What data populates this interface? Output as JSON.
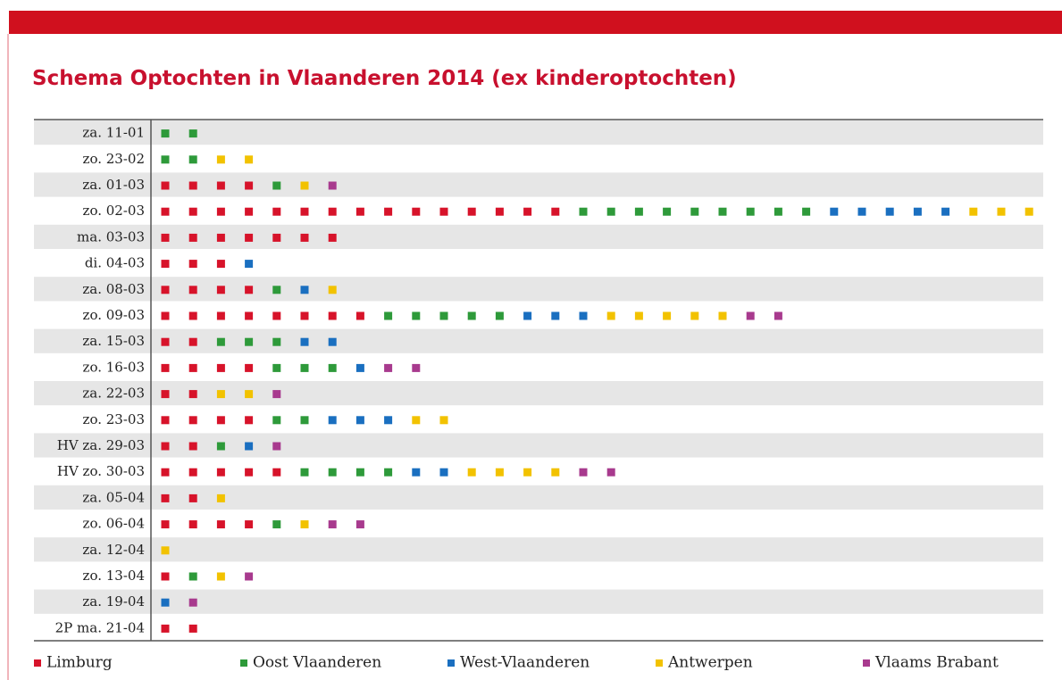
{
  "chart_data": {
    "type": "dot",
    "title": "Schema Optochten in Vlaanderen 2014 (ex kinderoptochten)",
    "categories": [
      "za. 11-01",
      "zo. 23-02",
      "za. 01-03",
      "zo. 02-03",
      "ma. 03-03",
      "di. 04-03",
      "za. 08-03",
      "zo. 09-03",
      "za. 15-03",
      "zo. 16-03",
      "za. 22-03",
      "zo. 23-03",
      "HV za. 29-03",
      "HV zo. 30-03",
      "za. 05-04",
      "zo. 06-04",
      "za. 12-04",
      "zo. 13-04",
      "za. 19-04",
      "2P ma. 21-04"
    ],
    "series": [
      {
        "name": "Limburg",
        "color": "#d7132a",
        "values": [
          0,
          0,
          4,
          15,
          7,
          3,
          4,
          8,
          2,
          4,
          2,
          4,
          2,
          5,
          2,
          4,
          0,
          1,
          0,
          2
        ]
      },
      {
        "name": "Oost Vlaanderen",
        "color": "#2e9a3a",
        "values": [
          2,
          2,
          1,
          9,
          0,
          0,
          1,
          5,
          3,
          3,
          0,
          2,
          1,
          4,
          0,
          1,
          0,
          1,
          0,
          0
        ]
      },
      {
        "name": "West-Vlaanderen",
        "color": "#1a6fc0",
        "values": [
          0,
          0,
          0,
          5,
          0,
          1,
          1,
          3,
          2,
          1,
          0,
          3,
          1,
          2,
          0,
          0,
          0,
          0,
          1,
          0
        ]
      },
      {
        "name": "Antwerpen",
        "color": "#f2c200",
        "values": [
          0,
          2,
          1,
          3,
          0,
          0,
          1,
          5,
          0,
          0,
          2,
          2,
          0,
          4,
          1,
          1,
          1,
          1,
          0,
          0
        ]
      },
      {
        "name": "Vlaams Brabant",
        "color": "#a83a8e",
        "values": [
          0,
          0,
          1,
          0,
          0,
          0,
          0,
          2,
          0,
          2,
          1,
          0,
          1,
          2,
          0,
          2,
          0,
          1,
          1,
          0
        ]
      }
    ]
  }
}
